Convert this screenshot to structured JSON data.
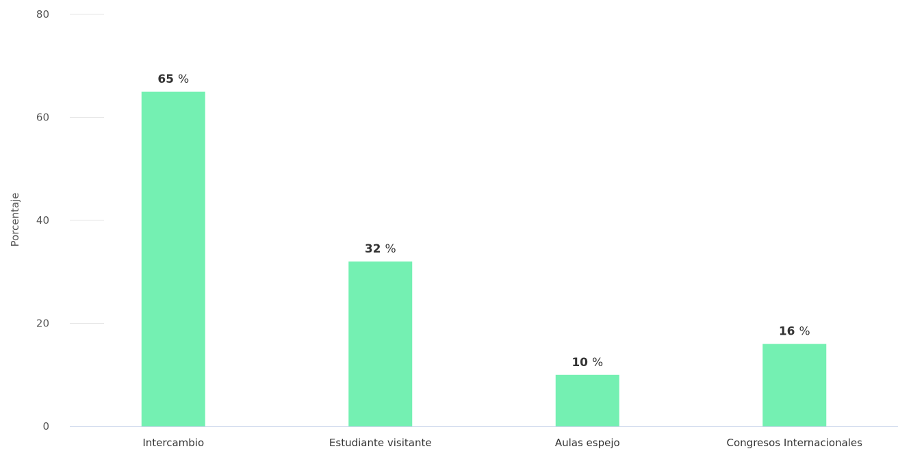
{
  "chart_data": {
    "type": "bar",
    "categories": [
      "Intercambio",
      "Estudiante visitante",
      "Aulas espejo",
      "Congresos Internacionales"
    ],
    "values": [
      65,
      32,
      10,
      16
    ],
    "value_suffix": "%",
    "title": "",
    "xlabel": "",
    "ylabel": "Porcentaje",
    "ylim": [
      0,
      80
    ],
    "yticks": [
      0,
      20,
      40,
      60,
      80
    ],
    "grid": true,
    "legend": "none",
    "colors": {
      "bar": "#74f0b2",
      "gridline": "#e6e6e6",
      "baseline": "#ccd6eb",
      "text": "#333333"
    }
  }
}
